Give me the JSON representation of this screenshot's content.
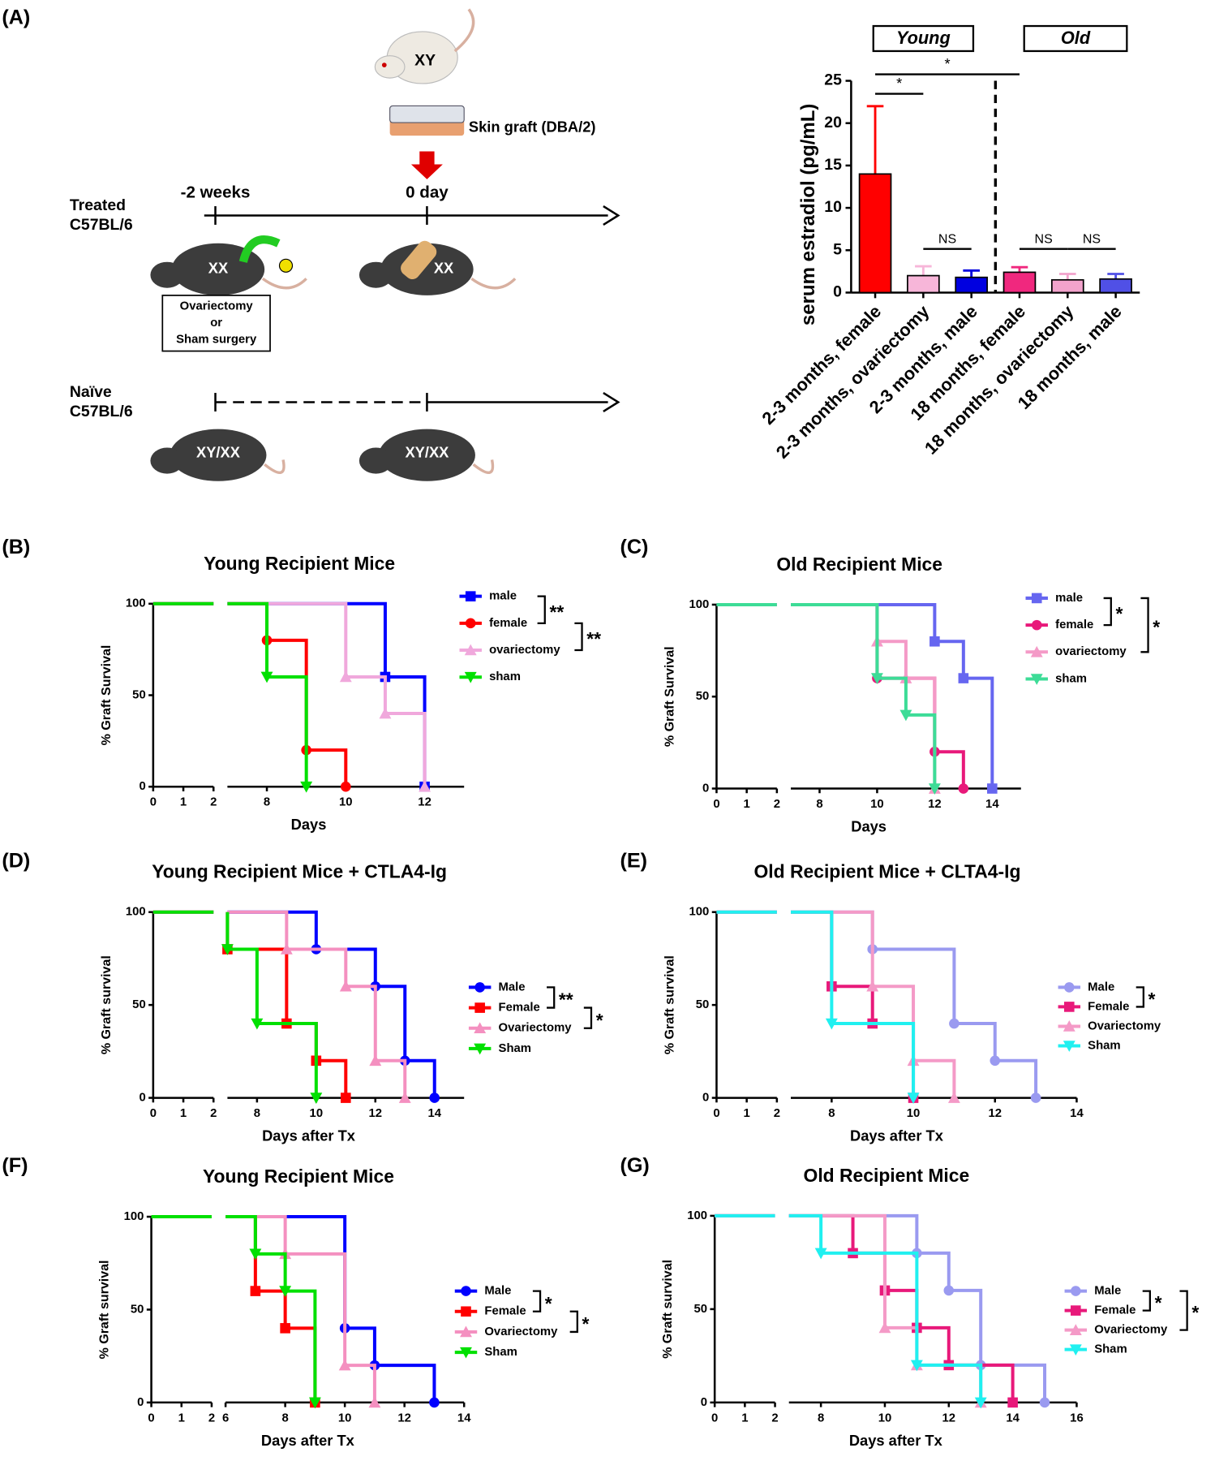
{
  "panel_labels": [
    "(A)",
    "(B)",
    "(C)",
    "(D)",
    "(E)",
    "(F)",
    "(G)"
  ],
  "diagram": {
    "donor": "XY",
    "graft": "Skin graft (DBA/2)",
    "treated_1": "Treated",
    "treated_2": "C57BL/6",
    "time_1": "-2 weeks",
    "time_2": "0 day",
    "mouse_1": "XX",
    "mouse_2": "XX",
    "box_1": "Ovariectomy",
    "box_2": "or",
    "box_3": "Sham surgery",
    "naive_1": "Naïve",
    "naive_2": "C57BL/6",
    "mouse_3": "XY/XX",
    "mouse_4": "XY/XX"
  },
  "chart_data": [
    {
      "type": "bar",
      "ylabel": "serum estradiol (pg/mL)",
      "categories": [
        "2-3 months, female",
        "2-3 months, ovariectomy",
        "2-3 months, male",
        "18 months, female",
        "18 months, ovariectomy",
        "18 months, male"
      ],
      "values": [
        14,
        2,
        1.8,
        2.4,
        1.5,
        1.6
      ],
      "errors": [
        8,
        1.1,
        0.8,
        0.6,
        0.7,
        0.6
      ],
      "colors": [
        "#ff0000",
        "#f7b6d9",
        "#0000e0",
        "#f0287e",
        "#f2a3cc",
        "#5050e6"
      ],
      "ylim": [
        0,
        25
      ],
      "yticks": [
        0,
        5,
        10,
        15,
        20,
        25
      ],
      "group_labels": [
        "Young",
        "Old"
      ],
      "annotations": [
        {
          "label": "*",
          "bars": [
            0,
            3
          ]
        },
        {
          "label": "*",
          "bars": [
            0,
            1
          ]
        },
        {
          "label": "NS",
          "bars": [
            1,
            2
          ]
        },
        {
          "label": "NS",
          "bars": [
            3,
            4
          ]
        },
        {
          "label": "NS",
          "bars": [
            4,
            5
          ]
        }
      ]
    },
    {
      "type": "survival",
      "title": "Young Recipient Mice",
      "xlabel": "Days",
      "ylabel": "% Graft Survival",
      "xlim": [
        0,
        13
      ],
      "xbreak": [
        2,
        7
      ],
      "xticks": [
        0,
        1,
        2,
        8,
        10,
        12
      ],
      "ylim": [
        0,
        100
      ],
      "yticks": [
        0,
        50,
        100
      ],
      "series": [
        {
          "name": "male",
          "color": "#0000ff",
          "marker": "square",
          "x": [
            0,
            11,
            12
          ],
          "values": [
            100,
            60,
            0
          ]
        },
        {
          "name": "female",
          "color": "#ff0000",
          "marker": "circle",
          "x": [
            0,
            8,
            9,
            10
          ],
          "values": [
            100,
            80,
            20,
            0
          ]
        },
        {
          "name": "ovariectomy",
          "color": "#f0a8dc",
          "marker": "triangle-up",
          "x": [
            0,
            10,
            11,
            12
          ],
          "values": [
            100,
            60,
            40,
            0
          ]
        },
        {
          "name": "sham",
          "color": "#00e000",
          "marker": "triangle-down",
          "x": [
            0,
            8,
            9
          ],
          "values": [
            100,
            60,
            0
          ]
        }
      ],
      "brackets": [
        {
          "label": "**",
          "series": [
            0,
            1
          ]
        },
        {
          "label": "**",
          "series": [
            1,
            2
          ]
        }
      ]
    },
    {
      "type": "survival",
      "title": "Old Recipient Mice",
      "xlabel": "Days",
      "ylabel": "% Graft Survival",
      "xlim": [
        0,
        15
      ],
      "xbreak": [
        2,
        7
      ],
      "xticks": [
        0,
        1,
        2,
        8,
        10,
        12,
        14
      ],
      "ylim": [
        0,
        100
      ],
      "yticks": [
        0,
        50,
        100
      ],
      "series": [
        {
          "name": "male",
          "color": "#6666f0",
          "marker": "square",
          "x": [
            0,
            12,
            13,
            14
          ],
          "values": [
            100,
            80,
            60,
            0
          ]
        },
        {
          "name": "female",
          "color": "#e8197a",
          "marker": "circle",
          "x": [
            0,
            10,
            12,
            13
          ],
          "values": [
            100,
            60,
            20,
            0
          ]
        },
        {
          "name": "ovariectomy",
          "color": "#f49ac7",
          "marker": "triangle-up",
          "x": [
            0,
            10,
            11,
            12
          ],
          "values": [
            100,
            80,
            60,
            0
          ]
        },
        {
          "name": "sham",
          "color": "#3ddc97",
          "marker": "triangle-down",
          "x": [
            0,
            10,
            11,
            12
          ],
          "values": [
            100,
            60,
            40,
            0
          ]
        }
      ],
      "brackets": [
        {
          "label": "*",
          "series": [
            0,
            1
          ]
        },
        {
          "label": "*",
          "series": [
            0,
            2
          ]
        }
      ]
    },
    {
      "type": "survival",
      "title": "Young Recipient Mice + CTLA4-Ig",
      "xlabel": "Days after Tx",
      "ylabel": "% Graft survival",
      "xlim": [
        0,
        15
      ],
      "xbreak": [
        2,
        7
      ],
      "xticks": [
        0,
        1,
        2,
        8,
        10,
        12,
        14
      ],
      "ylim": [
        0,
        100
      ],
      "yticks": [
        0,
        50,
        100
      ],
      "series": [
        {
          "name": "Male",
          "color": "#0000ff",
          "marker": "circle",
          "x": [
            0,
            10,
            12,
            13,
            14
          ],
          "values": [
            100,
            80,
            60,
            20,
            0
          ]
        },
        {
          "name": "Female",
          "color": "#ff0000",
          "marker": "square",
          "x": [
            0,
            7,
            9,
            10,
            11
          ],
          "values": [
            100,
            80,
            40,
            20,
            0
          ]
        },
        {
          "name": "Ovariectomy",
          "color": "#f490c0",
          "marker": "triangle-up",
          "x": [
            0,
            9,
            11,
            12,
            13
          ],
          "values": [
            100,
            80,
            60,
            20,
            0
          ]
        },
        {
          "name": "Sham",
          "color": "#00e000",
          "marker": "triangle-down",
          "x": [
            0,
            7,
            8,
            10
          ],
          "values": [
            100,
            80,
            40,
            0
          ]
        }
      ],
      "brackets": [
        {
          "label": "**",
          "series": [
            0,
            1
          ]
        },
        {
          "label": "*",
          "series": [
            1,
            2
          ]
        }
      ]
    },
    {
      "type": "survival",
      "title": "Old Recipient Mice + CLTA4-Ig",
      "xlabel": "Days after Tx",
      "ylabel": "% Graft survival",
      "xlim": [
        0,
        14
      ],
      "xbreak": [
        2,
        7
      ],
      "xticks": [
        0,
        1,
        2,
        8,
        10,
        12,
        14
      ],
      "ylim": [
        0,
        100
      ],
      "yticks": [
        0,
        50,
        100
      ],
      "series": [
        {
          "name": "Male",
          "color": "#9a9af0",
          "marker": "circle",
          "x": [
            0,
            9,
            11,
            12,
            13
          ],
          "values": [
            100,
            80,
            40,
            20,
            0
          ]
        },
        {
          "name": "Female",
          "color": "#e8197a",
          "marker": "square",
          "x": [
            0,
            8,
            9,
            10
          ],
          "values": [
            100,
            60,
            40,
            0
          ]
        },
        {
          "name": "Ovariectomy",
          "color": "#f49ac7",
          "marker": "triangle-up",
          "x": [
            0,
            9,
            10,
            11
          ],
          "values": [
            100,
            60,
            20,
            0
          ]
        },
        {
          "name": "Sham",
          "color": "#20f0f0",
          "marker": "triangle-down",
          "x": [
            0,
            8,
            10
          ],
          "values": [
            100,
            40,
            0
          ]
        }
      ],
      "brackets": [
        {
          "label": "*",
          "series": [
            0,
            1
          ]
        }
      ]
    },
    {
      "type": "survival",
      "title": "Young Recipient Mice",
      "xlabel": "Days after Tx",
      "ylabel": "% Graft survival",
      "xlim": [
        0,
        14
      ],
      "xbreak": [
        2,
        6
      ],
      "xticks": [
        0,
        1,
        2,
        6,
        8,
        10,
        12,
        14
      ],
      "ylim": [
        0,
        100
      ],
      "yticks": [
        0,
        50,
        100
      ],
      "series": [
        {
          "name": "Male",
          "color": "#0000ff",
          "marker": "circle",
          "x": [
            0,
            10,
            11,
            13
          ],
          "values": [
            100,
            40,
            20,
            0
          ]
        },
        {
          "name": "Female",
          "color": "#ff0000",
          "marker": "square",
          "x": [
            0,
            7,
            8,
            9
          ],
          "values": [
            100,
            60,
            40,
            0
          ]
        },
        {
          "name": "Ovariectomy",
          "color": "#f490c0",
          "marker": "triangle-up",
          "x": [
            0,
            8,
            10,
            11
          ],
          "values": [
            100,
            80,
            20,
            0
          ]
        },
        {
          "name": "Sham",
          "color": "#00e000",
          "marker": "triangle-down",
          "x": [
            0,
            7,
            8,
            9
          ],
          "values": [
            100,
            80,
            60,
            0
          ]
        }
      ],
      "brackets": [
        {
          "label": "*",
          "series": [
            0,
            1
          ]
        },
        {
          "label": "*",
          "series": [
            1,
            2
          ]
        }
      ]
    },
    {
      "type": "survival",
      "title": "Old Recipient Mice",
      "xlabel": "Days after Tx",
      "ylabel": "% Graft survival",
      "xlim": [
        0,
        16
      ],
      "xbreak": [
        2,
        7
      ],
      "xticks": [
        0,
        1,
        2,
        8,
        10,
        12,
        14,
        16
      ],
      "ylim": [
        0,
        100
      ],
      "yticks": [
        0,
        50,
        100
      ],
      "series": [
        {
          "name": "Male",
          "color": "#9a9af0",
          "marker": "circle",
          "x": [
            0,
            11,
            12,
            13,
            15
          ],
          "values": [
            100,
            80,
            60,
            20,
            0
          ]
        },
        {
          "name": "Female",
          "color": "#e8197a",
          "marker": "square",
          "x": [
            0,
            9,
            10,
            11,
            12,
            14
          ],
          "values": [
            100,
            80,
            60,
            40,
            20,
            0
          ]
        },
        {
          "name": "Ovariectomy",
          "color": "#f49ac7",
          "marker": "triangle-up",
          "x": [
            0,
            10,
            11,
            13
          ],
          "values": [
            100,
            40,
            20,
            0
          ]
        },
        {
          "name": "Sham",
          "color": "#20f0f0",
          "marker": "triangle-down",
          "x": [
            0,
            8,
            11,
            13
          ],
          "values": [
            100,
            80,
            20,
            0
          ]
        }
      ],
      "brackets": [
        {
          "label": "*",
          "series": [
            0,
            1
          ]
        },
        {
          "label": "*",
          "series": [
            0,
            2
          ]
        }
      ]
    }
  ]
}
